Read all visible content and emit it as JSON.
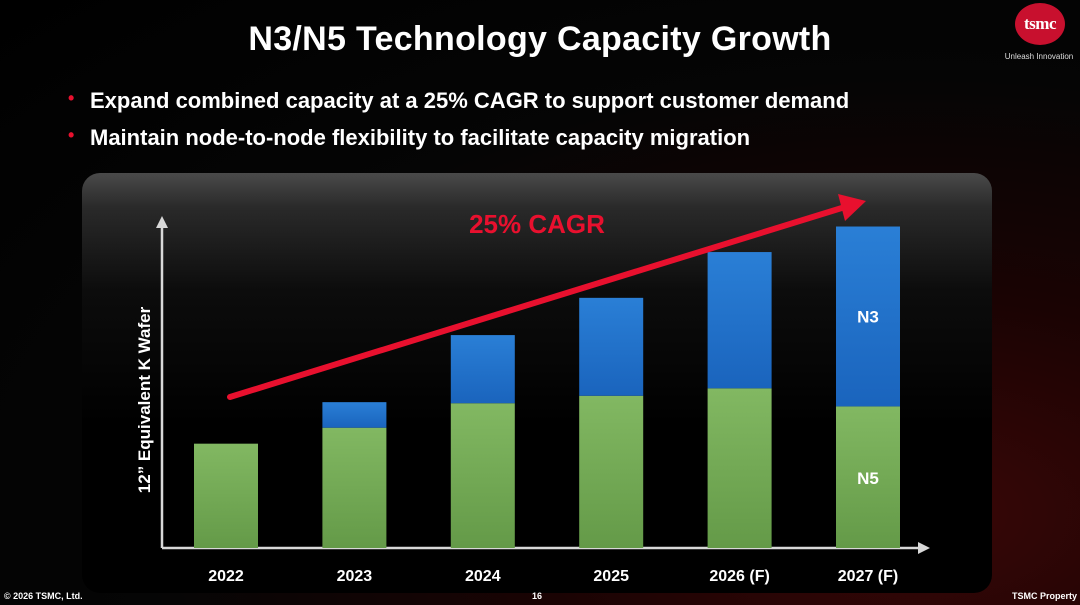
{
  "slide": {
    "title": "N3/N5 Technology Capacity Growth",
    "bullets": [
      "Expand combined capacity at a 25% CAGR to support customer demand",
      "Maintain node-to-node flexibility to facilitate capacity migration"
    ]
  },
  "logo": {
    "text": "tsmc",
    "tagline": "Unleash Innovation"
  },
  "footer": {
    "copyright": "© 2026 TSMC, Ltd.",
    "page": "16",
    "property": "TSMC Property"
  },
  "colors": {
    "n5": "#70a854",
    "n3": "#1f6fc9",
    "accent": "#e8102e"
  },
  "chart_data": {
    "type": "bar",
    "stacked": true,
    "title": "",
    "xlabel": "",
    "ylabel": "12” Equivalent K Wafer",
    "categories": [
      "2022",
      "2023",
      "2024",
      "2025",
      "2026 (F)",
      "2027 (F)"
    ],
    "series": [
      {
        "name": "N5",
        "values": [
          98,
          113,
          136,
          143,
          150,
          133
        ]
      },
      {
        "name": "N3",
        "values": [
          0,
          24,
          64,
          92,
          128,
          169
        ]
      }
    ],
    "ylim": [
      0,
      310
    ],
    "y_ticks_shown": false,
    "grid": false,
    "annotation": "25% CAGR"
  }
}
